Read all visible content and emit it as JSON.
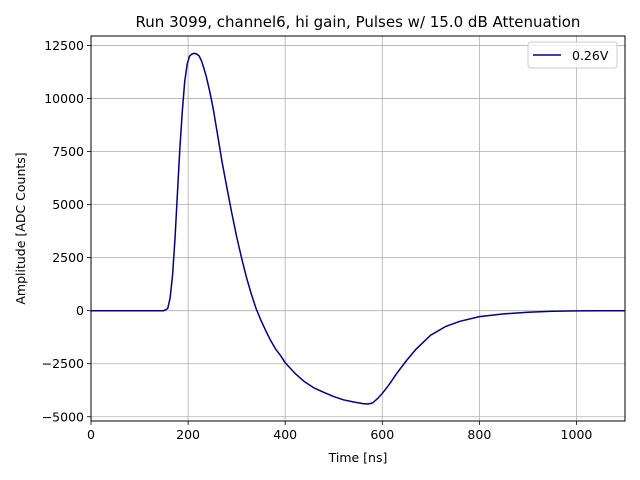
{
  "chart_data": {
    "type": "line",
    "title": "Run 3099, channel6, hi gain, Pulses w/ 15.0 dB Attenuation",
    "xlabel": "Time [ns]",
    "ylabel": "Amplitude [ADC Counts]",
    "xlim": [
      0,
      1100
    ],
    "ylim": [
      -5200,
      12950
    ],
    "xticks": [
      0,
      200,
      400,
      600,
      800,
      1000
    ],
    "yticks": [
      -5000,
      -2500,
      0,
      2500,
      5000,
      7500,
      10000,
      12500
    ],
    "xtick_labels": [
      "0",
      "200",
      "400",
      "600",
      "800",
      "1000"
    ],
    "ytick_labels": [
      "−5000",
      "−2500",
      "0",
      "2500",
      "5000",
      "7500",
      "10000",
      "12500"
    ],
    "grid": true,
    "legend_position": "top-right",
    "series": [
      {
        "name": "0.26V",
        "color": "#000080",
        "x": [
          0,
          100,
          150,
          158,
          163,
          168,
          173,
          178,
          183,
          188,
          193,
          198,
          203,
          208,
          213,
          218,
          223,
          228,
          233,
          238,
          245,
          252,
          260,
          270,
          280,
          290,
          300,
          310,
          320,
          330,
          340,
          350,
          360,
          370,
          380,
          390,
          400,
          420,
          440,
          460,
          480,
          500,
          520,
          540,
          560,
          570,
          580,
          590,
          600,
          615,
          630,
          650,
          670,
          700,
          730,
          760,
          800,
          850,
          900,
          950,
          1000,
          1050,
          1100
        ],
        "y": [
          0,
          0,
          0,
          100,
          600,
          1700,
          3400,
          5500,
          7600,
          9400,
          10800,
          11600,
          12000,
          12100,
          12130,
          12100,
          12000,
          11750,
          11400,
          11000,
          10300,
          9500,
          8400,
          7000,
          5800,
          4600,
          3500,
          2500,
          1600,
          800,
          100,
          -450,
          -950,
          -1400,
          -1800,
          -2100,
          -2450,
          -2950,
          -3350,
          -3650,
          -3850,
          -4050,
          -4200,
          -4300,
          -4380,
          -4400,
          -4350,
          -4150,
          -3900,
          -3450,
          -2950,
          -2350,
          -1800,
          -1150,
          -750,
          -500,
          -280,
          -150,
          -70,
          -30,
          -10,
          0,
          0
        ]
      }
    ]
  }
}
